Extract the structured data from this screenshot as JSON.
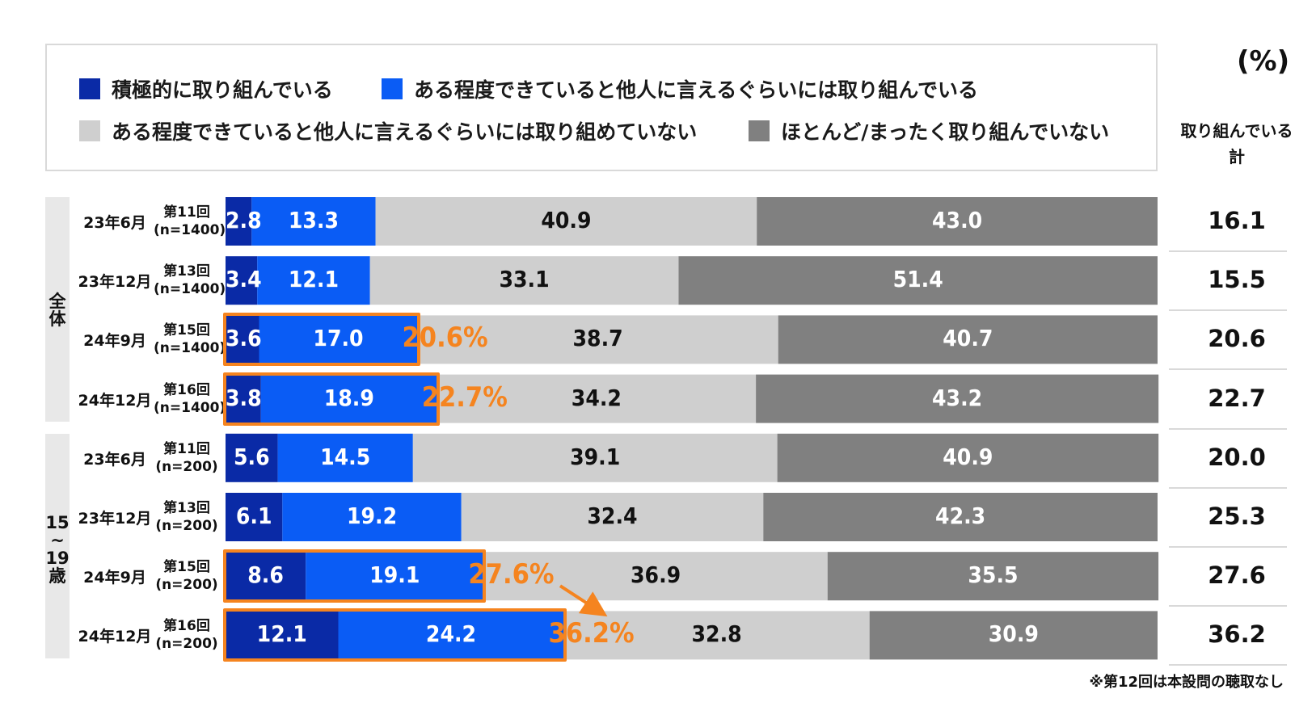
{
  "unit": "(%)",
  "total_header": [
    "取り組んでいる",
    "計"
  ],
  "footnote": "※第12回は本設問の聴取なし",
  "colors": {
    "active": "#0a2aa6",
    "somewhat": "#0a5cf5",
    "somewhat_not": "#cfcfcf",
    "not_at_all": "#808080",
    "highlight": "#f5841f"
  },
  "groups": [
    {
      "label": "全体"
    },
    {
      "label": "15~19歳"
    }
  ],
  "chart_data": {
    "type": "bar",
    "orientation": "horizontal",
    "stacked": true,
    "xlim": [
      0,
      100
    ],
    "series": [
      {
        "name": "積極的に取り組んでいる",
        "color": "#0a2aa6",
        "values": [
          2.8,
          3.4,
          3.6,
          3.8,
          5.6,
          6.1,
          8.6,
          12.1
        ]
      },
      {
        "name": "ある程度できていると他人に言えるぐらいには取り組んでいる",
        "color": "#0a5cf5",
        "values": [
          13.3,
          12.1,
          17.0,
          18.9,
          14.5,
          19.2,
          19.1,
          24.2
        ]
      },
      {
        "name": "ある程度できていると他人に言えるぐらいには取り組めていない",
        "color": "#cfcfcf",
        "values": [
          40.9,
          33.1,
          38.7,
          34.2,
          39.1,
          32.4,
          36.9,
          32.8
        ]
      },
      {
        "name": "ほとんど/まったく取り組んでいない",
        "color": "#808080",
        "values": [
          43.0,
          51.4,
          40.7,
          43.2,
          40.9,
          42.3,
          35.5,
          30.9
        ]
      }
    ],
    "rows": [
      {
        "group": "全体",
        "date": "23年6月",
        "wave": "第11回",
        "n": "(n=1400)",
        "labels": [
          "2.8",
          "13.3",
          "40.9",
          "43.0"
        ],
        "total": "16.1",
        "highlight": null
      },
      {
        "group": "全体",
        "date": "23年12月",
        "wave": "第13回",
        "n": "(n=1400)",
        "labels": [
          "3.4",
          "12.1",
          "33.1",
          "51.4"
        ],
        "total": "15.5",
        "highlight": null
      },
      {
        "group": "全体",
        "date": "24年9月",
        "wave": "第15回",
        "n": "(n=1400)",
        "labels": [
          "3.6",
          "17.0",
          "38.7",
          "40.7"
        ],
        "total": "20.6",
        "highlight": "20.6%"
      },
      {
        "group": "全体",
        "date": "24年12月",
        "wave": "第16回",
        "n": "(n=1400)",
        "labels": [
          "3.8",
          "18.9",
          "34.2",
          "43.2"
        ],
        "total": "22.7",
        "highlight": "22.7%"
      },
      {
        "group": "15~19歳",
        "date": "23年6月",
        "wave": "第11回",
        "n": "(n=200)",
        "labels": [
          "5.6",
          "14.5",
          "39.1",
          "40.9"
        ],
        "total": "20.0",
        "highlight": null
      },
      {
        "group": "15~19歳",
        "date": "23年12月",
        "wave": "第13回",
        "n": "(n=200)",
        "labels": [
          "6.1",
          "19.2",
          "32.4",
          "42.3"
        ],
        "total": "25.3",
        "highlight": null
      },
      {
        "group": "15~19歳",
        "date": "24年9月",
        "wave": "第15回",
        "n": "(n=200)",
        "labels": [
          "8.6",
          "19.1",
          "36.9",
          "35.5"
        ],
        "total": "27.6",
        "highlight": "27.6%"
      },
      {
        "group": "15~19歳",
        "date": "24年12月",
        "wave": "第16回",
        "n": "(n=200)",
        "labels": [
          "12.1",
          "24.2",
          "32.8",
          "30.9"
        ],
        "total": "36.2",
        "highlight": "36.2%"
      }
    ],
    "arrow": {
      "from_row": 6,
      "to_row": 7
    }
  }
}
